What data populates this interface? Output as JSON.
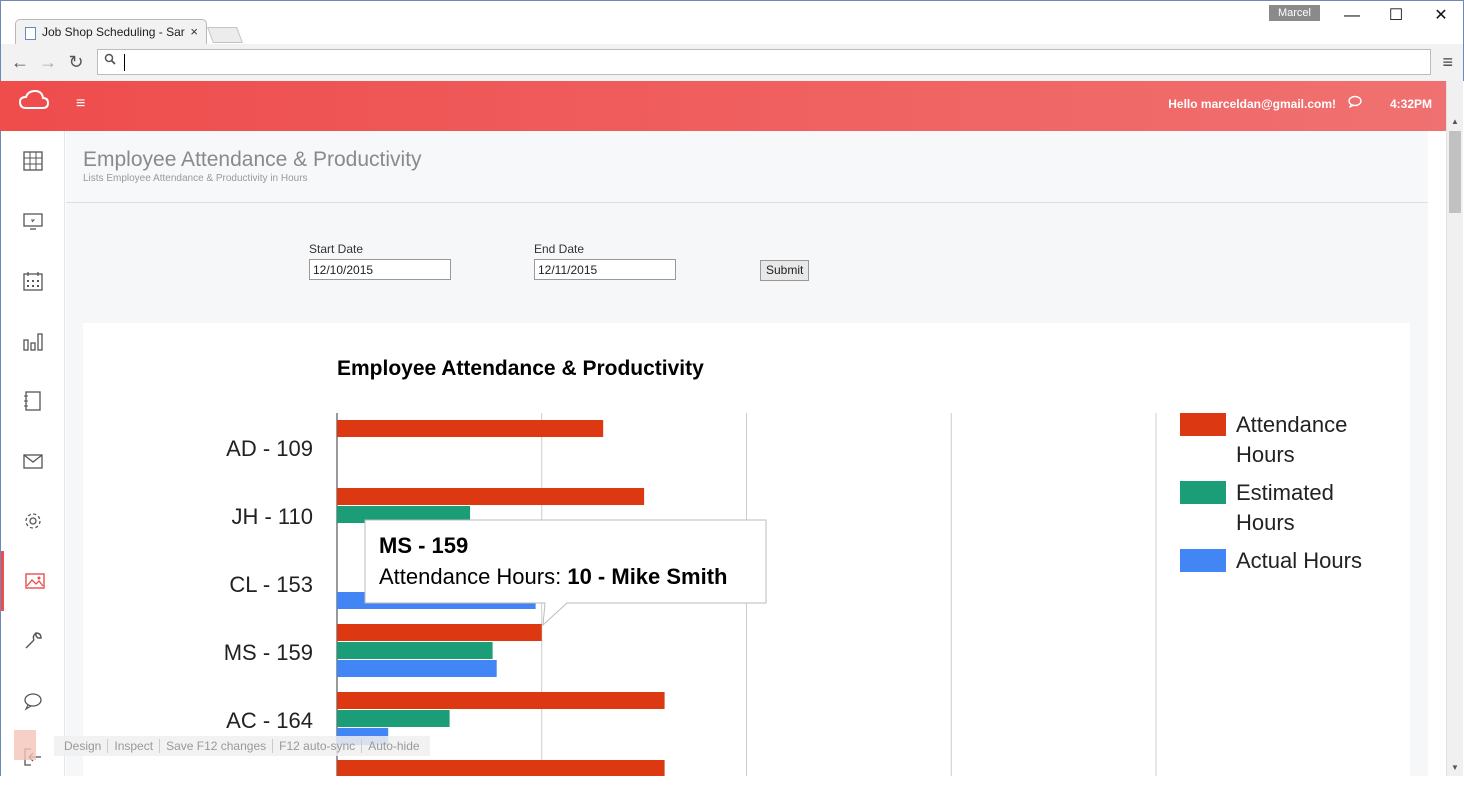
{
  "browser": {
    "tab_title": "Job Shop Scheduling - Sar",
    "tab_close": "×",
    "user": "Marcel",
    "window_buttons": {
      "minimize": "—",
      "maximize": "☐",
      "close": "✕"
    },
    "back": "←",
    "forward": "→",
    "reload": "↻",
    "search_icon": "🔍",
    "url": "",
    "menu": "≡"
  },
  "app": {
    "menu_icon": "≡",
    "hello": "Hello marceldan@gmail.com!",
    "time": "4:32PM",
    "chat_icon": "🗨"
  },
  "sidebar": {
    "items": [
      {
        "icon": "calculator-icon"
      },
      {
        "icon": "monitor-icon"
      },
      {
        "icon": "calendar-icon"
      },
      {
        "icon": "bar-chart-icon"
      },
      {
        "icon": "notebook-icon"
      },
      {
        "icon": "mail-icon"
      },
      {
        "icon": "gear-icon"
      },
      {
        "icon": "image-icon",
        "active": true
      },
      {
        "icon": "wrench-icon"
      },
      {
        "icon": "chat-icon"
      },
      {
        "icon": "logout-icon"
      }
    ]
  },
  "page": {
    "title": "Employee Attendance & Productivity",
    "subtitle": "Lists Employee Attendance & Productivity in Hours"
  },
  "filters": {
    "start_label": "Start Date",
    "start_value": "12/10/2015",
    "end_label": "End Date",
    "end_value": "12/11/2015",
    "submit_label": "Submit"
  },
  "chart_data": {
    "type": "bar",
    "orientation": "horizontal",
    "title": "Employee Attendance & Productivity",
    "categories": [
      "AD - 109",
      "JH - 110",
      "CL - 153",
      "MS - 159",
      "AC - 164"
    ],
    "series": [
      {
        "name": "Attendance Hours",
        "color": "#dc3912",
        "values": [
          13,
          15,
          null,
          10,
          16
        ]
      },
      {
        "name": "Estimated Hours",
        "color": "#1b9e77",
        "values": [
          null,
          6.5,
          null,
          7.6,
          5.5
        ]
      },
      {
        "name": "Actual Hours",
        "color": "#4285f4",
        "values": [
          null,
          null,
          9.7,
          7.8,
          2.5
        ]
      }
    ],
    "xlim": [
      0,
      40
    ],
    "grid": true,
    "legend_position": "right",
    "tooltip": {
      "title": "MS - 159",
      "label": "Attendance Hours: ",
      "value": "10 - Mike Smith"
    }
  },
  "devbar": {
    "items": [
      "Design",
      "Inspect",
      "Save F12 changes",
      "F12 auto-sync",
      "Auto-hide"
    ]
  }
}
